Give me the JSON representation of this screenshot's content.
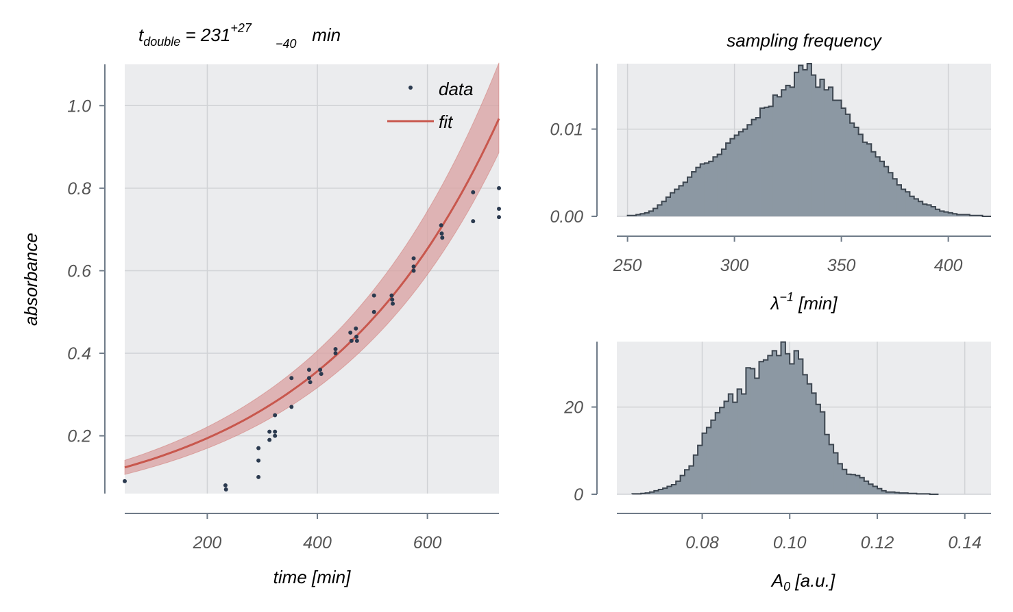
{
  "chart_data": [
    {
      "type": "scatter",
      "title": "t",
      "title_sub": "double",
      "title_eq": " = 231",
      "title_sup": "+27",
      "title_low": "−40",
      "title_unit": " min",
      "xlabel": "time [min]",
      "ylabel": "absorbance",
      "xlim": [
        50,
        730
      ],
      "ylim": [
        0.06,
        1.1
      ],
      "xticks": [
        200,
        400,
        600
      ],
      "xtick_labels": [
        "200",
        "400",
        "600"
      ],
      "yticks": [
        0.2,
        0.4,
        0.6,
        0.8,
        1.0
      ],
      "ytick_labels": [
        "0.2",
        "0.4",
        "0.6",
        "0.8",
        "1.0"
      ],
      "grid": true,
      "legend_position": "top-right",
      "colors": {
        "data": "#2b3a4f",
        "fit": "#c8574d",
        "band": "#d9a0a0",
        "background": "#ebecee"
      },
      "series": [
        {
          "name": "data",
          "kind": "points",
          "points": [
            [
              50,
              0.09
            ],
            [
              233,
              0.08
            ],
            [
              234,
              0.07
            ],
            [
              293,
              0.17
            ],
            [
              293,
              0.14
            ],
            [
              293,
              0.1
            ],
            [
              313,
              0.21
            ],
            [
              313,
              0.19
            ],
            [
              323,
              0.25
            ],
            [
              323,
              0.21
            ],
            [
              323,
              0.2
            ],
            [
              353,
              0.34
            ],
            [
              353,
              0.27
            ],
            [
              385,
              0.36
            ],
            [
              385,
              0.34
            ],
            [
              387,
              0.33
            ],
            [
              405,
              0.36
            ],
            [
              407,
              0.35
            ],
            [
              433,
              0.41
            ],
            [
              433,
              0.4
            ],
            [
              460,
              0.45
            ],
            [
              462,
              0.43
            ],
            [
              470,
              0.46
            ],
            [
              471,
              0.44
            ],
            [
              472,
              0.43
            ],
            [
              503,
              0.54
            ],
            [
              503,
              0.5
            ],
            [
              535,
              0.54
            ],
            [
              536,
              0.53
            ],
            [
              537,
              0.52
            ],
            [
              575,
              0.63
            ],
            [
              575,
              0.61
            ],
            [
              575,
              0.6
            ],
            [
              625,
              0.71
            ],
            [
              626,
              0.69
            ],
            [
              627,
              0.68
            ],
            [
              683,
              0.79
            ],
            [
              683,
              0.72
            ],
            [
              730,
              0.8
            ],
            [
              730,
              0.75
            ],
            [
              730,
              0.73
            ]
          ]
        },
        {
          "name": "fit",
          "kind": "curve",
          "A0": 0.106,
          "lambda_inv": 330,
          "band_lower_scale": [
            1.16,
            0.915
          ],
          "band_upper_scale": [
            1.14,
            1.14
          ]
        }
      ]
    },
    {
      "type": "bar",
      "title": "sampling frequency",
      "xlabel": "λ",
      "xlabel_sup": "−1",
      "xlabel_unit": " [min]",
      "xlim": [
        245,
        420
      ],
      "ylim": [
        0,
        0.0175
      ],
      "xticks": [
        250,
        300,
        350,
        400
      ],
      "xtick_labels": [
        "250",
        "300",
        "350",
        "400"
      ],
      "yticks": [
        0.0,
        0.01
      ],
      "ytick_labels": [
        "0.00",
        "0.01"
      ],
      "grid": true,
      "histogram": {
        "bins_start": 250,
        "bin_width": 2,
        "values": [
          0.0001,
          0.0001,
          0.0002,
          0.0003,
          0.0004,
          0.0006,
          0.0009,
          0.0013,
          0.0017,
          0.0022,
          0.0027,
          0.0031,
          0.0035,
          0.0039,
          0.0045,
          0.0051,
          0.0056,
          0.006,
          0.0061,
          0.0063,
          0.0068,
          0.0071,
          0.0077,
          0.0084,
          0.0089,
          0.0093,
          0.0097,
          0.01,
          0.0105,
          0.0111,
          0.0113,
          0.0124,
          0.0125,
          0.0126,
          0.0139,
          0.0137,
          0.0145,
          0.015,
          0.0148,
          0.0165,
          0.0173,
          0.0168,
          0.0175,
          0.0162,
          0.0148,
          0.0157,
          0.0145,
          0.0148,
          0.0133,
          0.0133,
          0.0124,
          0.0117,
          0.0107,
          0.0102,
          0.0094,
          0.0085,
          0.0083,
          0.0074,
          0.0068,
          0.0063,
          0.0057,
          0.005,
          0.0043,
          0.0036,
          0.0031,
          0.0028,
          0.0023,
          0.002,
          0.0017,
          0.0014,
          0.0013,
          0.0011,
          0.0008,
          0.0006,
          0.0005,
          0.0004,
          0.0003,
          0.0002,
          0.0002,
          0.0002,
          0.0001,
          0.0001,
          0.0001,
          0.0,
          0.0
        ],
        "color": "#8c98a3",
        "edge_color": "#3d4650"
      }
    },
    {
      "type": "bar",
      "title": "",
      "xlabel": "A",
      "xlabel_sub": "0",
      "xlabel_unit": " [a.u.]",
      "xlim": [
        0.0605,
        0.146
      ],
      "ylim": [
        0,
        35
      ],
      "xticks": [
        0.08,
        0.1,
        0.12,
        0.14
      ],
      "xtick_labels": [
        "0.08",
        "0.10",
        "0.12",
        "0.14"
      ],
      "yticks": [
        0,
        20
      ],
      "ytick_labels": [
        "0",
        "20"
      ],
      "grid": true,
      "histogram": {
        "bins_start": 0.064,
        "bin_width": 0.001,
        "values": [
          0.1,
          0.1,
          0.2,
          0.3,
          0.5,
          0.8,
          1.1,
          1.4,
          1.8,
          2.2,
          3.0,
          4.3,
          5.6,
          6.5,
          9.0,
          11.2,
          14.0,
          15.3,
          17.0,
          18.7,
          19.9,
          21.3,
          23.0,
          21.1,
          24.1,
          23.0,
          29.0,
          28.8,
          26.6,
          30.4,
          30.8,
          31.8,
          32.9,
          31.8,
          34.9,
          32.2,
          29.9,
          32.9,
          31.0,
          27.4,
          25.3,
          23.2,
          20.6,
          18.9,
          13.7,
          11.4,
          9.5,
          7.0,
          5.7,
          4.6,
          4.5,
          4.3,
          3.8,
          3.0,
          2.3,
          1.8,
          1.3,
          0.8,
          0.5,
          0.5,
          0.4,
          0.3,
          0.3,
          0.2,
          0.2,
          0.1,
          0.1,
          0.1,
          0.0,
          0.0
        ],
        "color": "#8c98a3",
        "edge_color": "#3d4650"
      }
    }
  ]
}
